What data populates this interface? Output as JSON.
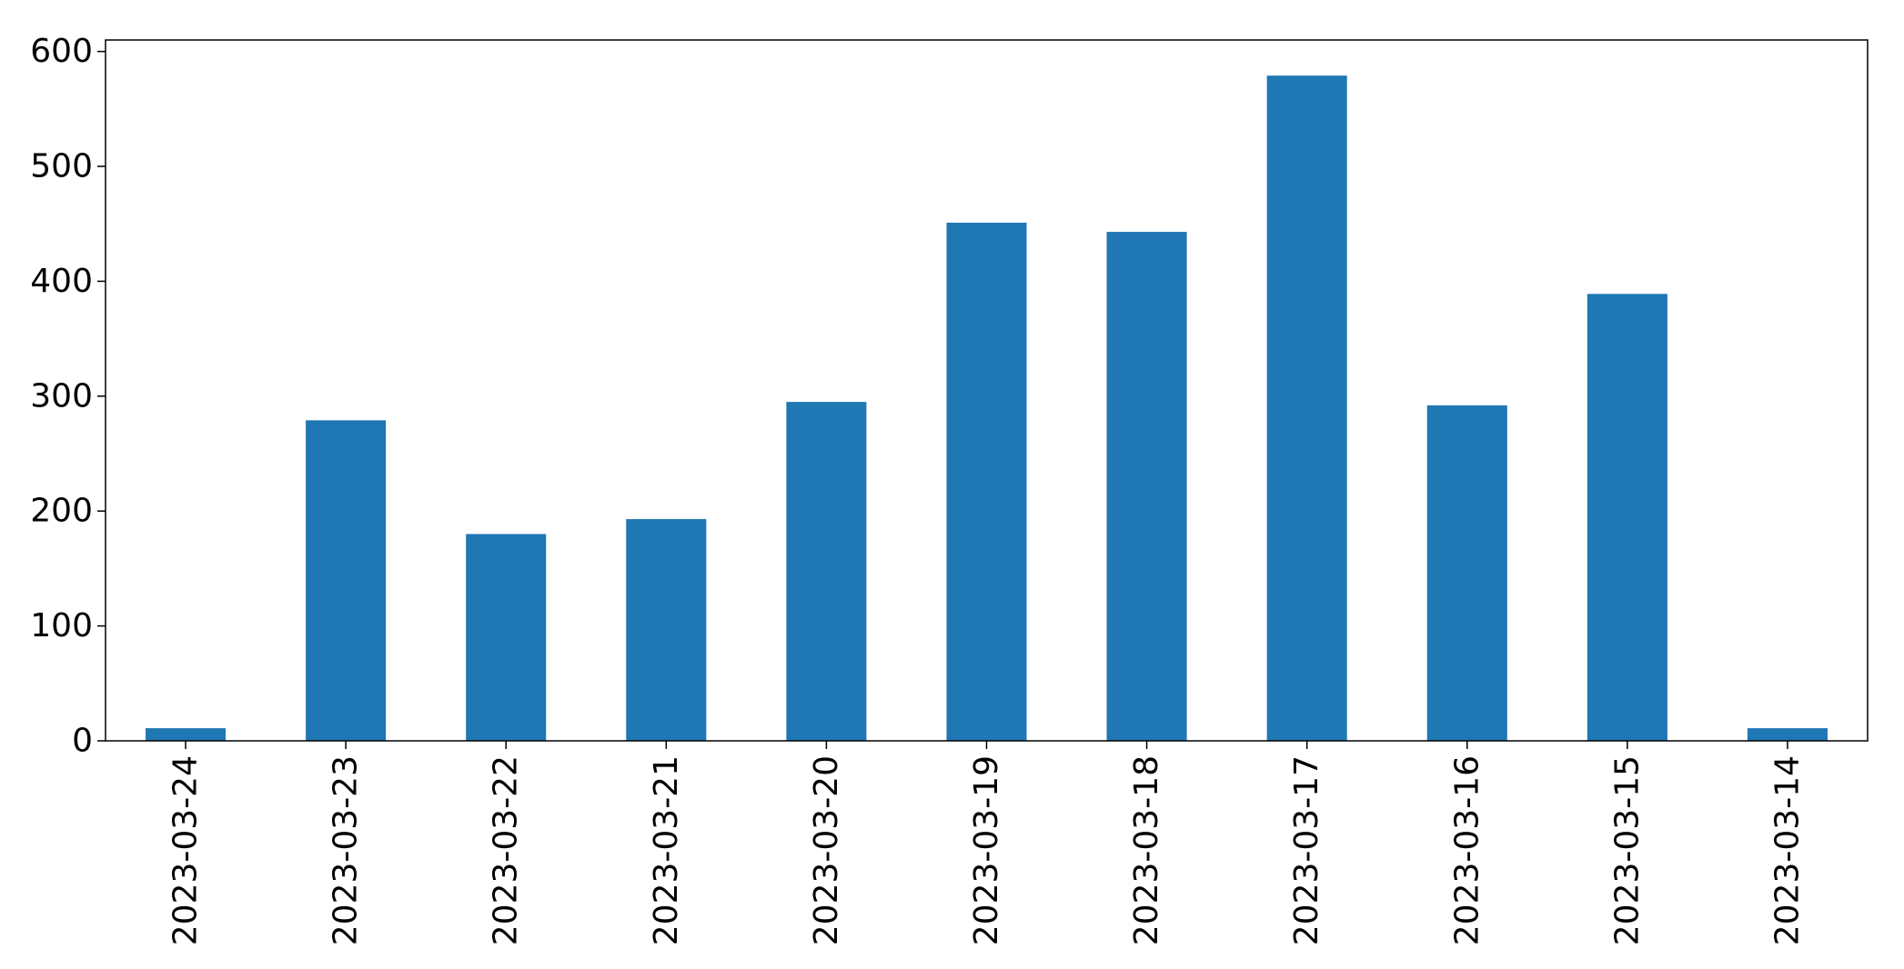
{
  "chart_data": {
    "type": "bar",
    "categories": [
      "2023-03-24",
      "2023-03-23",
      "2023-03-22",
      "2023-03-21",
      "2023-03-20",
      "2023-03-19",
      "2023-03-18",
      "2023-03-17",
      "2023-03-16",
      "2023-03-15",
      "2023-03-14"
    ],
    "values": [
      11,
      279,
      180,
      193,
      295,
      451,
      443,
      579,
      292,
      389,
      11
    ],
    "ylim": [
      0,
      610
    ],
    "yticks": [
      0,
      100,
      200,
      300,
      400,
      500,
      600
    ],
    "bar_color": "#1f77b4",
    "grid": false,
    "legend": "none"
  }
}
